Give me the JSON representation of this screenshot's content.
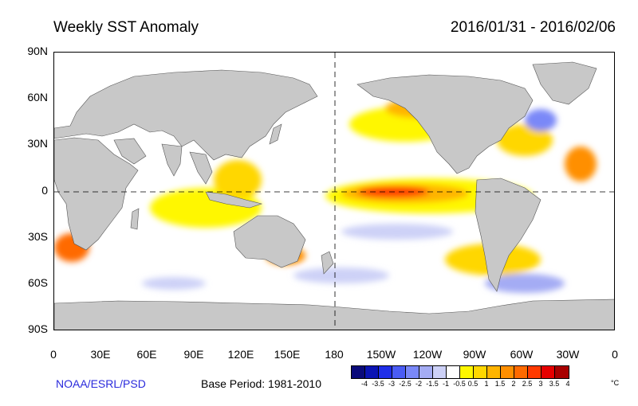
{
  "header": {
    "title": "Weekly SST Anomaly",
    "date_range": "2016/01/31 - 2016/02/06"
  },
  "axes": {
    "y_ticks": [
      "90N",
      "60N",
      "30N",
      "0",
      "30S",
      "60S",
      "90S"
    ],
    "x_ticks": [
      "0",
      "30E",
      "60E",
      "90E",
      "120E",
      "150E",
      "180",
      "150W",
      "120W",
      "90W",
      "60W",
      "30W",
      "0"
    ]
  },
  "colors": {
    "land": "#c8c8c8",
    "ocean": "#ffffff",
    "coast": "#555555"
  },
  "colorbar": {
    "colors": [
      "#0a0a7a",
      "#0b14b4",
      "#1f2ee8",
      "#4a5cf5",
      "#7a88f8",
      "#a4acf4",
      "#cdd1f7",
      "#ffffff",
      "#fff700",
      "#ffd700",
      "#ffb400",
      "#ff8f00",
      "#ff6a00",
      "#ff3a00",
      "#e60000",
      "#a80000"
    ],
    "labels": [
      "-4",
      "-3.5",
      "-3",
      "-2.5",
      "-2",
      "-1.5",
      "-1",
      "-0.5",
      "0.5",
      "1",
      "1.5",
      "2",
      "2.5",
      "3",
      "3.5",
      "4"
    ],
    "unit": "°C"
  },
  "footer": {
    "credit": "NOAA/ESRL/PSD",
    "base_period": "Base Period: 1981-2010"
  }
}
